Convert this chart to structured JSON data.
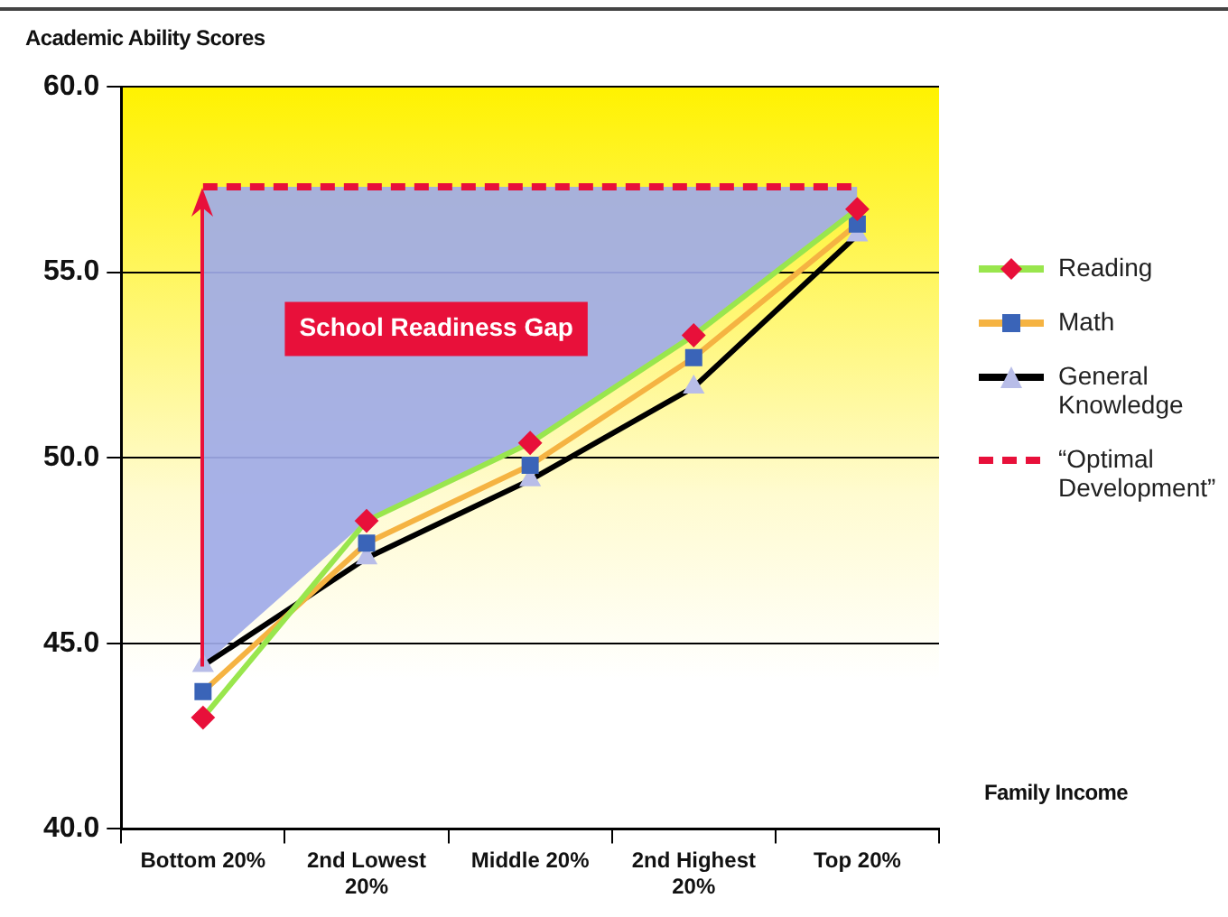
{
  "chart_data": {
    "type": "line",
    "ylabel": "Academic Ability Scores",
    "xlabel": "Family Income",
    "categories": [
      "Bottom 20%",
      "2nd Lowest 20%",
      "Middle 20%",
      "2nd Highest 20%",
      "Top 20%"
    ],
    "series": [
      {
        "name": "Reading",
        "color": "#99e64d",
        "colors": [
          "#e8103a",
          "#e8103a",
          "#e8103a",
          "#e8103a",
          "#e8103a"
        ],
        "marker": "diamond",
        "values": [
          43.0,
          48.3,
          50.4,
          53.3,
          56.7
        ]
      },
      {
        "name": "Math",
        "color": "#f5b342",
        "colors": [
          "#3a64b8",
          "#3a64b8",
          "#3a64b8",
          "#3a64b8",
          "#3a64b8"
        ],
        "marker": "square",
        "values": [
          43.7,
          47.7,
          49.8,
          52.7,
          56.3
        ]
      },
      {
        "name": "General Knowledge",
        "color": "#000000",
        "colors": [
          "#b8bde8",
          "#b8bde8",
          "#b8bde8",
          "#b8bde8",
          "#b8bde8"
        ],
        "marker": "triangle",
        "values": [
          44.4,
          47.3,
          49.4,
          51.9,
          56.0
        ]
      },
      {
        "name": "“Optimal Development”",
        "color": "#e8103a",
        "marker": "none",
        "line_style": "dashed",
        "values": [
          57.3,
          57.3,
          57.3,
          57.3,
          57.3
        ],
        "lower": [
          44.4,
          48.3,
          50.4,
          53.3,
          56.7
        ],
        "upper": [
          57.3,
          57.3,
          57.3,
          57.3,
          57.3
        ]
      }
    ],
    "ylim": [
      40,
      60
    ],
    "yticks": [
      {
        "value": 40,
        "label": "40.0"
      },
      {
        "value": 45,
        "label": "45.0"
      },
      {
        "value": 50,
        "label": "50.0"
      },
      {
        "value": 55,
        "label": "55.0"
      },
      {
        "value": 60,
        "label": "60.0"
      }
    ],
    "grid": "y",
    "legend": "right",
    "annotations": [
      "School Readiness Gap"
    ]
  }
}
